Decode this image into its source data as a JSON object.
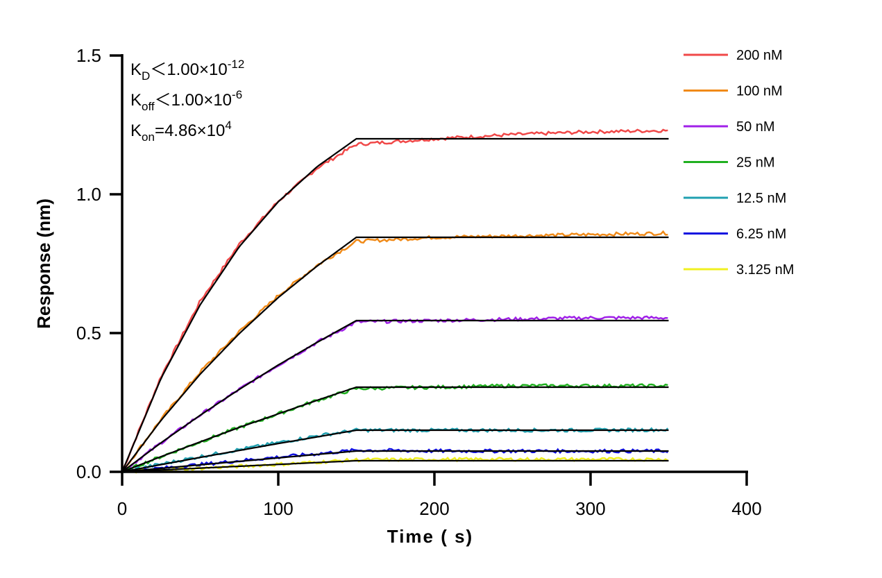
{
  "chart_data": {
    "type": "line",
    "title": "",
    "xlabel": "Time ( s)",
    "ylabel": "Response (nm)",
    "xlim": [
      0,
      400
    ],
    "ylim": [
      0,
      1.5
    ],
    "xticks": [
      "0",
      "100",
      "200",
      "300",
      "400"
    ],
    "yticks": [
      "0.0",
      "0.5",
      "1.0",
      "1.5"
    ],
    "grid": false,
    "legend_position": "top-right",
    "annotations": [
      {
        "main": "K",
        "sub": "D",
        "rest": "＜1.00×10",
        "sup": "-12"
      },
      {
        "main": "K",
        "sub": "off",
        "rest": "＜1.00×10",
        "sup": "-6"
      },
      {
        "main": "K",
        "sub": "on",
        "rest": "=4.86×10",
        "sup": "4"
      }
    ],
    "x": [
      0,
      25,
      50,
      75,
      100,
      125,
      150,
      200,
      250,
      300,
      350
    ],
    "fit_color": "#000000",
    "series": [
      {
        "name": "200 nM",
        "color": "#f04848",
        "values": [
          0,
          0.345,
          0.615,
          0.82,
          0.975,
          1.095,
          1.18,
          1.2,
          1.215,
          1.225,
          1.23
        ],
        "fit": [
          0,
          0.338,
          0.602,
          0.811,
          0.973,
          1.1,
          1.2,
          1.2,
          1.2,
          1.2,
          1.2
        ]
      },
      {
        "name": "100 nM",
        "color": "#f08a18",
        "values": [
          0,
          0.19,
          0.36,
          0.505,
          0.635,
          0.745,
          0.83,
          0.845,
          0.85,
          0.855,
          0.86
        ],
        "fit": [
          0,
          0.186,
          0.352,
          0.498,
          0.628,
          0.742,
          0.845,
          0.845,
          0.845,
          0.845,
          0.845
        ]
      },
      {
        "name": "50 nM",
        "color": "#a020e8",
        "values": [
          0,
          0.105,
          0.205,
          0.297,
          0.385,
          0.467,
          0.54,
          0.545,
          0.55,
          0.555,
          0.555
        ],
        "fit": [
          0,
          0.105,
          0.204,
          0.297,
          0.385,
          0.467,
          0.545,
          0.545,
          0.545,
          0.545,
          0.545
        ]
      },
      {
        "name": "25 nM",
        "color": "#20b020",
        "values": [
          0,
          0.055,
          0.108,
          0.16,
          0.209,
          0.258,
          0.3,
          0.305,
          0.31,
          0.31,
          0.31
        ],
        "fit": [
          0,
          0.055,
          0.108,
          0.16,
          0.209,
          0.258,
          0.305,
          0.305,
          0.305,
          0.305,
          0.305
        ]
      },
      {
        "name": "12.5 nM",
        "color": "#20a0b0",
        "values": [
          0,
          0.028,
          0.055,
          0.08,
          0.105,
          0.13,
          0.15,
          0.15,
          0.15,
          0.15,
          0.152
        ],
        "fit": [
          0,
          0.026,
          0.052,
          0.077,
          0.102,
          0.126,
          0.15,
          0.15,
          0.15,
          0.15,
          0.15
        ]
      },
      {
        "name": "6.25 nM",
        "color": "#1010e0",
        "values": [
          0,
          0.013,
          0.026,
          0.04,
          0.053,
          0.065,
          0.078,
          0.075,
          0.075,
          0.075,
          0.075
        ],
        "fit": [
          0,
          0.0126,
          0.0252,
          0.0377,
          0.0502,
          0.0627,
          0.075,
          0.075,
          0.075,
          0.075,
          0.075
        ]
      },
      {
        "name": "3.125 nM",
        "color": "#f0f020",
        "values": [
          0,
          0.006,
          0.013,
          0.02,
          0.027,
          0.035,
          0.043,
          0.045,
          0.045,
          0.045,
          0.045
        ],
        "fit": [
          0,
          0.0067,
          0.0134,
          0.02,
          0.0267,
          0.0334,
          0.04,
          0.04,
          0.04,
          0.04,
          0.04
        ]
      }
    ]
  }
}
